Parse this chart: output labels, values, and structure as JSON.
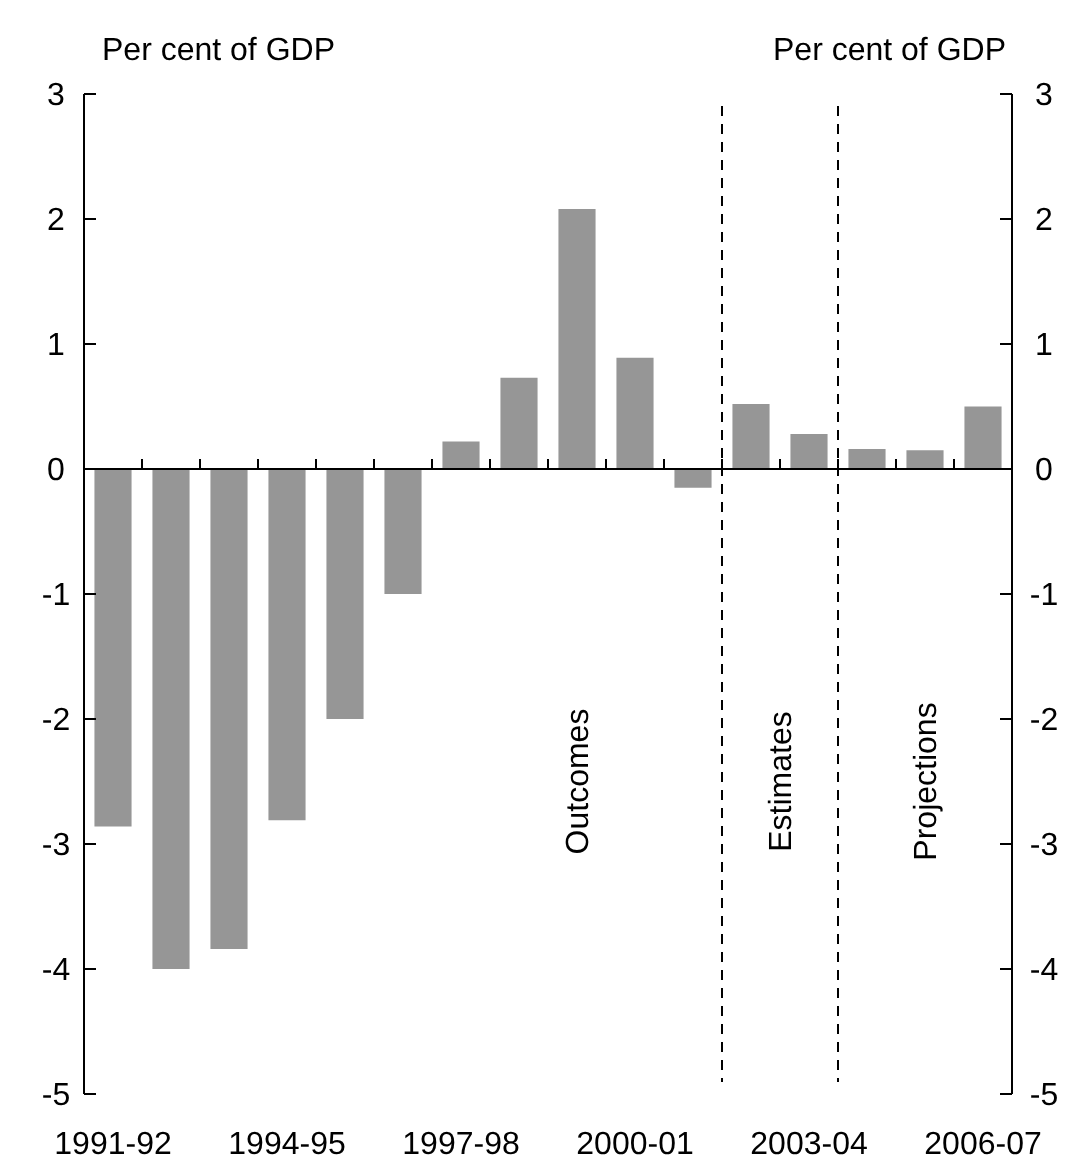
{
  "chart_data": {
    "type": "bar",
    "ylabel": "Per cent of GDP",
    "y2label": "Per cent of GDP",
    "categories": [
      "1991-92",
      null,
      null,
      "1994-95",
      null,
      null,
      "1997-98",
      null,
      null,
      "2000-01",
      null,
      null,
      "2003-04",
      null,
      null,
      "2006-07"
    ],
    "values": [
      -2.86,
      -4.0,
      -3.84,
      -2.81,
      -2.0,
      -1.0,
      0.22,
      0.73,
      2.08,
      0.89,
      -0.15,
      0.52,
      0.28,
      0.16,
      0.15,
      0.5
    ],
    "color": "#969696",
    "ylim": [
      -5,
      3
    ],
    "yticks": [
      -5,
      -4,
      -3,
      -2,
      -1,
      0,
      1,
      2,
      3
    ],
    "y2lim": [
      -5,
      3
    ],
    "y2ticks": [
      -5,
      -4,
      -3,
      -2,
      -1,
      0,
      1,
      2,
      3
    ],
    "annotations": [
      "Outcomes",
      "Estimates",
      "Projections"
    ],
    "grid": false
  }
}
